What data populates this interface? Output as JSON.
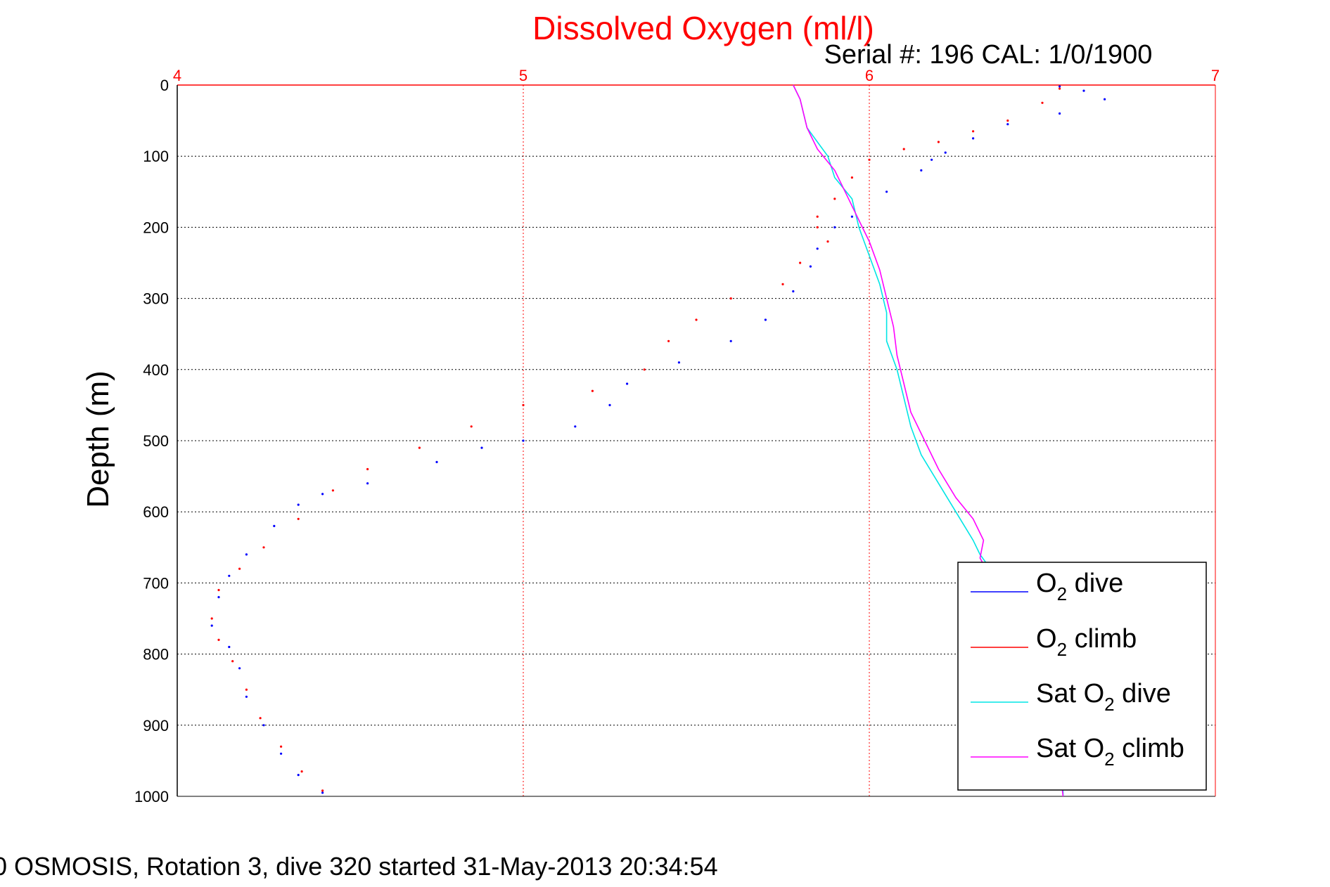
{
  "chart_data": {
    "type": "line",
    "title": "Dissolved Oxygen (ml/l)",
    "subtitle": "Serial #: 196  CAL: 1/0/1900",
    "ylabel": "Depth (m)",
    "footer": "0 OSMOSIS, Rotation 3, dive 320 started 31-May-2013 20:34:54",
    "xlim": [
      4,
      7
    ],
    "ylim": [
      0,
      1000
    ],
    "y_reversed": true,
    "x_axis_position": "top",
    "grid": true,
    "legend_position": "bottom-right",
    "x_ticks": [
      "4",
      "5",
      "6",
      "7"
    ],
    "y_ticks": [
      "0",
      "100",
      "200",
      "300",
      "400",
      "500",
      "600",
      "700",
      "800",
      "900",
      "1000"
    ],
    "colors": {
      "o2_dive": "#0000ff",
      "o2_climb": "#ff0000",
      "sat_dive": "#00e5e5",
      "sat_climb": "#ff00ff",
      "title": "#ff0000",
      "grid": "#ff0000"
    },
    "legend": {
      "o2_dive_sub": "2",
      "o2_dive_tail": " dive",
      "o2_climb_sub": "2",
      "o2_climb_tail": " climb",
      "sat_dive_pre": "Sat O",
      "sat_dive_sub": "2",
      "sat_dive_tail": " dive",
      "sat_climb_pre": "Sat O",
      "sat_climb_sub": "2",
      "sat_climb_tail": " climb",
      "o2_pre": "O"
    },
    "series": [
      {
        "name": "O2 dive",
        "key": "o2_dive",
        "style": "dots",
        "points": [
          [
            6.55,
            2
          ],
          [
            6.62,
            8
          ],
          [
            6.68,
            20
          ],
          [
            6.55,
            40
          ],
          [
            6.4,
            55
          ],
          [
            6.3,
            75
          ],
          [
            6.22,
            95
          ],
          [
            6.18,
            105
          ],
          [
            6.15,
            120
          ],
          [
            6.05,
            150
          ],
          [
            5.95,
            185
          ],
          [
            5.9,
            200
          ],
          [
            5.85,
            230
          ],
          [
            5.83,
            255
          ],
          [
            5.78,
            290
          ],
          [
            5.7,
            330
          ],
          [
            5.6,
            360
          ],
          [
            5.45,
            390
          ],
          [
            5.3,
            420
          ],
          [
            5.25,
            450
          ],
          [
            5.15,
            480
          ],
          [
            5.0,
            500
          ],
          [
            4.88,
            510
          ],
          [
            4.75,
            530
          ],
          [
            4.55,
            560
          ],
          [
            4.42,
            575
          ],
          [
            4.35,
            590
          ],
          [
            4.28,
            620
          ],
          [
            4.2,
            660
          ],
          [
            4.15,
            690
          ],
          [
            4.12,
            720
          ],
          [
            4.1,
            760
          ],
          [
            4.15,
            790
          ],
          [
            4.18,
            820
          ],
          [
            4.2,
            860
          ],
          [
            4.25,
            900
          ],
          [
            4.3,
            940
          ],
          [
            4.35,
            970
          ],
          [
            4.42,
            995
          ]
        ]
      },
      {
        "name": "O2 climb",
        "key": "o2_climb",
        "style": "dots",
        "points": [
          [
            6.55,
            5
          ],
          [
            6.5,
            25
          ],
          [
            6.4,
            50
          ],
          [
            6.3,
            65
          ],
          [
            6.2,
            80
          ],
          [
            6.1,
            90
          ],
          [
            6.0,
            105
          ],
          [
            5.95,
            130
          ],
          [
            5.9,
            160
          ],
          [
            5.85,
            185
          ],
          [
            5.85,
            200
          ],
          [
            5.88,
            220
          ],
          [
            5.8,
            250
          ],
          [
            5.75,
            280
          ],
          [
            5.6,
            300
          ],
          [
            5.5,
            330
          ],
          [
            5.42,
            360
          ],
          [
            5.35,
            400
          ],
          [
            5.2,
            430
          ],
          [
            5.0,
            450
          ],
          [
            4.85,
            480
          ],
          [
            4.7,
            510
          ],
          [
            4.55,
            540
          ],
          [
            4.45,
            570
          ],
          [
            4.35,
            610
          ],
          [
            4.25,
            650
          ],
          [
            4.18,
            680
          ],
          [
            4.12,
            710
          ],
          [
            4.1,
            750
          ],
          [
            4.12,
            780
          ],
          [
            4.16,
            810
          ],
          [
            4.2,
            850
          ],
          [
            4.24,
            890
          ],
          [
            4.3,
            930
          ],
          [
            4.36,
            965
          ],
          [
            4.42,
            992
          ]
        ]
      },
      {
        "name": "Sat O2 dive",
        "key": "sat_dive",
        "style": "line",
        "points": [
          [
            5.78,
            0
          ],
          [
            5.8,
            20
          ],
          [
            5.82,
            60
          ],
          [
            5.85,
            80
          ],
          [
            5.88,
            100
          ],
          [
            5.9,
            130
          ],
          [
            5.95,
            160
          ],
          [
            5.97,
            200
          ],
          [
            6.0,
            240
          ],
          [
            6.03,
            280
          ],
          [
            6.05,
            320
          ],
          [
            6.05,
            360
          ],
          [
            6.08,
            400
          ],
          [
            6.1,
            440
          ],
          [
            6.12,
            480
          ],
          [
            6.15,
            520
          ],
          [
            6.2,
            560
          ],
          [
            6.25,
            600
          ],
          [
            6.3,
            640
          ],
          [
            6.32,
            660
          ],
          [
            6.35,
            680
          ],
          [
            6.4,
            720
          ],
          [
            6.45,
            780
          ],
          [
            6.5,
            840
          ],
          [
            6.52,
            880
          ],
          [
            6.54,
            920
          ],
          [
            6.56,
            960
          ],
          [
            6.56,
            1000
          ]
        ]
      },
      {
        "name": "Sat O2 climb",
        "key": "sat_climb",
        "style": "line",
        "points": [
          [
            5.78,
            0
          ],
          [
            5.8,
            20
          ],
          [
            5.82,
            60
          ],
          [
            5.85,
            90
          ],
          [
            5.9,
            120
          ],
          [
            5.93,
            150
          ],
          [
            5.97,
            190
          ],
          [
            6.0,
            220
          ],
          [
            6.03,
            260
          ],
          [
            6.05,
            300
          ],
          [
            6.07,
            340
          ],
          [
            6.08,
            380
          ],
          [
            6.1,
            420
          ],
          [
            6.12,
            460
          ],
          [
            6.16,
            500
          ],
          [
            6.2,
            540
          ],
          [
            6.25,
            580
          ],
          [
            6.3,
            610
          ],
          [
            6.33,
            640
          ],
          [
            6.32,
            665
          ],
          [
            6.36,
            700
          ],
          [
            6.42,
            760
          ],
          [
            6.46,
            820
          ],
          [
            6.5,
            870
          ],
          [
            6.53,
            920
          ],
          [
            6.55,
            960
          ],
          [
            6.56,
            1000
          ]
        ]
      }
    ]
  }
}
